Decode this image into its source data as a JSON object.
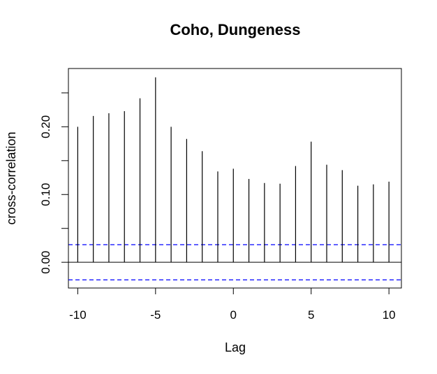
{
  "chart_data": {
    "type": "bar",
    "title": "Coho, Dungeness",
    "xlabel": "Lag",
    "ylabel": "cross-correlation",
    "x": [
      -10,
      -9,
      -8,
      -7,
      -6,
      -5,
      -4,
      -3,
      -2,
      -1,
      0,
      1,
      2,
      3,
      4,
      5,
      6,
      7,
      8,
      9,
      10
    ],
    "values": [
      0.2,
      0.216,
      0.22,
      0.223,
      0.242,
      0.273,
      0.2,
      0.182,
      0.164,
      0.134,
      0.138,
      0.123,
      0.117,
      0.116,
      0.142,
      0.178,
      0.144,
      0.136,
      0.113,
      0.115,
      0.119
    ],
    "xlim": [
      -10.6,
      10.8
    ],
    "ylim": [
      -0.038,
      0.286
    ],
    "x_ticks": [
      -10,
      -5,
      0,
      5,
      10
    ],
    "x_tick_labels": [
      "-10",
      "-5",
      "0",
      "5",
      "10"
    ],
    "y_ticks": [
      0.0,
      0.05,
      0.1,
      0.15,
      0.2,
      0.25
    ],
    "y_tick_labels": [
      "0.00",
      "",
      "0.10",
      "",
      "0.20",
      ""
    ],
    "zero_line": 0,
    "confidence_bound": 0.026,
    "colors": {
      "bars": "#000000",
      "confidence": "#0000ff",
      "axes": "#000000"
    },
    "grid": false
  }
}
